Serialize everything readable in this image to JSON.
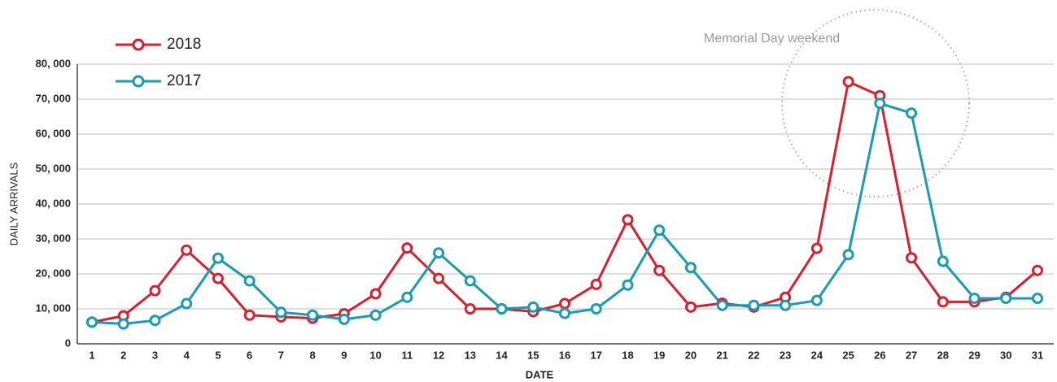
{
  "chart_data": {
    "type": "line",
    "annotation": "Memorial Day weekend",
    "x_label": "DATE",
    "y_label": "DAILY ARRIVALS",
    "categories": [
      "1",
      "2",
      "3",
      "4",
      "5",
      "6",
      "7",
      "8",
      "9",
      "10",
      "11",
      "12",
      "13",
      "14",
      "15",
      "16",
      "17",
      "18",
      "19",
      "20",
      "21",
      "22",
      "23",
      "24",
      "25",
      "26",
      "27",
      "28",
      "29",
      "30",
      "31"
    ],
    "series": [
      {
        "name": "2018",
        "color": "#d7202f",
        "values": [
          6200,
          8000,
          15200,
          26800,
          18700,
          8200,
          7700,
          7300,
          8600,
          14300,
          27400,
          18700,
          10000,
          10000,
          9200,
          11500,
          17000,
          35500,
          21000,
          10500,
          11600,
          10500,
          13300,
          27300,
          75000,
          71000,
          24600,
          12000,
          12000,
          13300,
          21000
        ]
      },
      {
        "name": "2017",
        "color": "#1a9bb4",
        "values": [
          6200,
          5700,
          6700,
          11500,
          24500,
          18000,
          9000,
          8200,
          7000,
          8200,
          13300,
          26000,
          18000,
          10000,
          10500,
          8700,
          10000,
          16800,
          32500,
          21800,
          11000,
          11000,
          11000,
          12400,
          25500,
          68800,
          66000,
          23600,
          13000,
          13000,
          13000
        ]
      }
    ],
    "ylim": [
      0,
      80000
    ],
    "yticks": [
      0,
      {
        "value": 10000,
        "label": "10, 000"
      },
      {
        "value": 20000,
        "label": "20, 000"
      },
      {
        "value": 30000,
        "label": "30, 000"
      },
      {
        "value": 40000,
        "label": "40, 000"
      },
      {
        "value": 50000,
        "label": "50, 000"
      },
      {
        "value": 60000,
        "label": "60, 000"
      },
      {
        "value": 70000,
        "label": "70, 000"
      },
      {
        "value": 80000,
        "label": "80, 000"
      }
    ],
    "grid": true,
    "legend": "upper left"
  }
}
